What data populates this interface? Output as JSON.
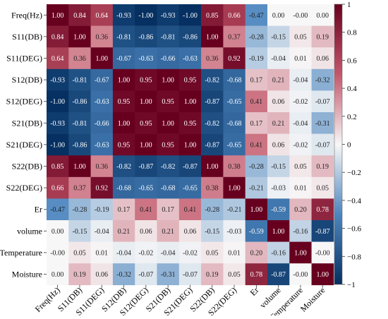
{
  "chart_data": {
    "type": "heatmap",
    "title": "",
    "xlabel": "",
    "ylabel": "",
    "labels": [
      "Freq(Hz)",
      "S11(DB)",
      "S11(DEG)",
      "S12(DB)",
      "S12(DEG)",
      "S21(DB)",
      "S21(DEG)",
      "S22(DB)",
      "S22(DEG)",
      "Er",
      "volume",
      "Temperature",
      "Moisture"
    ],
    "matrix": [
      [
        1.0,
        0.84,
        0.64,
        -0.93,
        -1.0,
        -0.93,
        -1.0,
        0.85,
        0.66,
        -0.47,
        0.0,
        -0.0,
        0.0
      ],
      [
        0.84,
        1.0,
        0.36,
        -0.81,
        -0.86,
        -0.81,
        -0.86,
        1.0,
        0.37,
        -0.28,
        -0.15,
        0.05,
        0.19
      ],
      [
        0.64,
        0.36,
        1.0,
        -0.67,
        -0.63,
        -0.66,
        -0.63,
        0.36,
        0.92,
        -0.19,
        -0.04,
        0.01,
        0.06
      ],
      [
        -0.93,
        -0.81,
        -0.67,
        1.0,
        0.95,
        1.0,
        0.95,
        -0.82,
        -0.68,
        0.17,
        0.21,
        -0.04,
        -0.32
      ],
      [
        -1.0,
        -0.86,
        -0.63,
        0.95,
        1.0,
        0.95,
        1.0,
        -0.87,
        -0.65,
        0.41,
        0.06,
        -0.02,
        -0.07
      ],
      [
        -0.93,
        -0.81,
        -0.66,
        1.0,
        0.95,
        1.0,
        0.95,
        -0.82,
        -0.68,
        0.17,
        0.21,
        -0.04,
        -0.31
      ],
      [
        -1.0,
        -0.86,
        -0.63,
        0.95,
        1.0,
        0.95,
        1.0,
        -0.87,
        -0.65,
        0.41,
        0.06,
        -0.02,
        -0.07
      ],
      [
        0.85,
        1.0,
        0.36,
        -0.82,
        -0.87,
        -0.82,
        -0.87,
        1.0,
        0.38,
        -0.28,
        -0.15,
        0.05,
        0.19
      ],
      [
        0.66,
        0.37,
        0.92,
        -0.68,
        -0.65,
        -0.68,
        -0.65,
        0.38,
        1.0,
        -0.21,
        -0.03,
        0.01,
        0.05
      ],
      [
        -0.47,
        -0.28,
        -0.19,
        0.17,
        0.41,
        0.17,
        0.41,
        -0.28,
        -0.21,
        1.0,
        -0.59,
        0.2,
        0.78
      ],
      [
        0.0,
        -0.15,
        -0.04,
        0.21,
        0.06,
        0.21,
        0.06,
        -0.15,
        -0.03,
        -0.59,
        1.0,
        -0.16,
        -0.87
      ],
      [
        -0.0,
        0.05,
        0.01,
        -0.04,
        -0.02,
        -0.04,
        -0.02,
        0.05,
        0.01,
        0.2,
        -0.16,
        1.0,
        -0.0
      ],
      [
        0.0,
        0.19,
        0.06,
        -0.32,
        -0.07,
        -0.31,
        -0.07,
        0.19,
        0.05,
        0.78,
        -0.87,
        -0.0,
        1.0
      ]
    ],
    "colorbar": {
      "range": [
        -1,
        1
      ],
      "ticks": [
        1,
        0.8,
        0.6,
        0.4,
        0.2,
        0,
        -0.2,
        -0.4,
        -0.6,
        -0.8,
        -1
      ],
      "tick_labels": [
        "1",
        "0.8",
        "0.6",
        "0.4",
        "0.2",
        "0",
        "−0.2",
        "−0.4",
        "−0.6",
        "−0.8",
        "−1"
      ],
      "colors": {
        "neg_end": "#053061",
        "neg_mid": "#4d86bf",
        "neutral": "#f7f7f7",
        "pos_mid": "#c3576a",
        "pos_end": "#67001f"
      }
    },
    "annotations_format": "2 decimals"
  }
}
